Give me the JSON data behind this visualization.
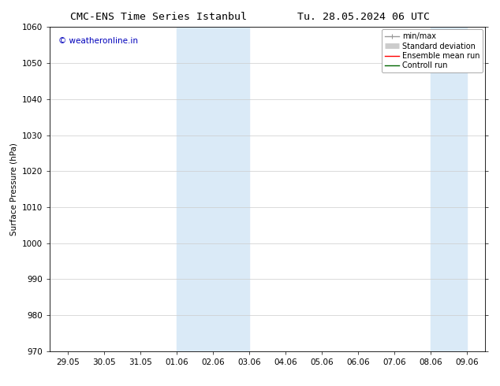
{
  "title": "CMC-ENS Time Series Istanbul",
  "title_right": "Tu. 28.05.2024 06 UTC",
  "ylabel": "Surface Pressure (hPa)",
  "ylim": [
    970,
    1060
  ],
  "yticks": [
    970,
    980,
    990,
    1000,
    1010,
    1020,
    1030,
    1040,
    1050,
    1060
  ],
  "x_labels": [
    "29.05",
    "30.05",
    "31.05",
    "01.06",
    "02.06",
    "03.06",
    "04.06",
    "05.06",
    "06.06",
    "07.06",
    "08.06",
    "09.06"
  ],
  "x_values": [
    0,
    1,
    2,
    3,
    4,
    5,
    6,
    7,
    8,
    9,
    10,
    11
  ],
  "xlim": [
    -0.5,
    11.5
  ],
  "shaded_regions": [
    {
      "x_start": 3.0,
      "x_end": 4.0,
      "color": "#daeaf7"
    },
    {
      "x_start": 4.0,
      "x_end": 5.0,
      "color": "#daeaf7"
    },
    {
      "x_start": 10.0,
      "x_end": 11.0,
      "color": "#daeaf7"
    }
  ],
  "watermark_text": "© weatheronline.in",
  "watermark_color": "#0000bb",
  "background_color": "#ffffff",
  "legend_items": [
    {
      "label": "min/max",
      "color": "#999999",
      "linestyle": "-",
      "linewidth": 1.0
    },
    {
      "label": "Standard deviation",
      "color": "#cccccc",
      "linestyle": "-",
      "linewidth": 5
    },
    {
      "label": "Ensemble mean run",
      "color": "#ff0000",
      "linestyle": "-",
      "linewidth": 1.0
    },
    {
      "label": "Controll run",
      "color": "#006600",
      "linestyle": "-",
      "linewidth": 1.0
    }
  ],
  "tick_color": "#000000",
  "spine_color": "#000000",
  "grid_color": "#cccccc",
  "font_size": 7.5,
  "title_font_size": 9.5,
  "watermark_font_size": 7.5
}
